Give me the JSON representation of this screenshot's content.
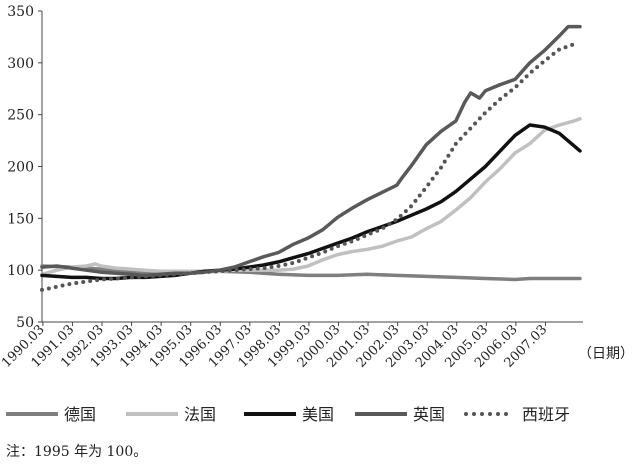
{
  "chart_data": {
    "type": "line",
    "title": "",
    "xlabel": "（日期）",
    "ylabel": "",
    "ylim": [
      50,
      350
    ],
    "yticks": [
      50,
      100,
      150,
      200,
      250,
      300,
      350
    ],
    "grid": false,
    "legend_position": "bottom",
    "note": "注：1995 年为 100。",
    "x_ticks": [
      "1990.03",
      "1991.03",
      "1992.03",
      "1993.03",
      "1994.03",
      "1995.03",
      "1996.03",
      "1997.03",
      "1998.03",
      "1999.03",
      "2000.03",
      "2001.03",
      "2002.03",
      "2003.03",
      "2004.03",
      "2005.03",
      "2006.03",
      "2007.03"
    ],
    "x_range": [
      1990.0,
      2008.3
    ],
    "series": [
      {
        "name": "德国",
        "color": "#7f7f7f",
        "style": "solid",
        "points": [
          [
            1990.0,
            104
          ],
          [
            1991.0,
            103
          ],
          [
            1992.0,
            101
          ],
          [
            1993.0,
            99
          ],
          [
            1994.0,
            98
          ],
          [
            1995.0,
            98
          ],
          [
            1996.0,
            99
          ],
          [
            1997.0,
            98
          ],
          [
            1998.0,
            96
          ],
          [
            1999.0,
            95
          ],
          [
            2000.0,
            95
          ],
          [
            2001.0,
            96
          ],
          [
            2002.0,
            95
          ],
          [
            2003.0,
            94
          ],
          [
            2004.0,
            93
          ],
          [
            2005.0,
            92
          ],
          [
            2006.0,
            91
          ],
          [
            2006.5,
            92
          ],
          [
            2007.0,
            92
          ],
          [
            2007.5,
            92
          ],
          [
            2008.2,
            92
          ]
        ]
      },
      {
        "name": "法国",
        "color": "#c0c0c0",
        "style": "solid",
        "points": [
          [
            1990.0,
            96
          ],
          [
            1990.5,
            100
          ],
          [
            1991.0,
            103
          ],
          [
            1991.5,
            104
          ],
          [
            1991.8,
            106
          ],
          [
            1992.0,
            104
          ],
          [
            1992.5,
            102
          ],
          [
            1993.0,
            101
          ],
          [
            1993.5,
            100
          ],
          [
            1994.0,
            99
          ],
          [
            1994.5,
            99
          ],
          [
            1995.0,
            99
          ],
          [
            1995.5,
            99
          ],
          [
            1996.0,
            99
          ],
          [
            1996.5,
            100
          ],
          [
            1997.0,
            100
          ],
          [
            1997.5,
            100
          ],
          [
            1998.0,
            100
          ],
          [
            1998.5,
            101
          ],
          [
            1999.0,
            104
          ],
          [
            1999.5,
            110
          ],
          [
            2000.0,
            115
          ],
          [
            2000.5,
            118
          ],
          [
            2001.0,
            120
          ],
          [
            2001.5,
            123
          ],
          [
            2002.0,
            128
          ],
          [
            2002.5,
            132
          ],
          [
            2003.0,
            140
          ],
          [
            2003.5,
            147
          ],
          [
            2004.0,
            158
          ],
          [
            2004.5,
            170
          ],
          [
            2005.0,
            185
          ],
          [
            2005.5,
            198
          ],
          [
            2006.0,
            213
          ],
          [
            2006.5,
            222
          ],
          [
            2007.0,
            235
          ],
          [
            2007.5,
            240
          ],
          [
            2008.0,
            244
          ],
          [
            2008.2,
            246
          ]
        ]
      },
      {
        "name": "美国",
        "color": "#111111",
        "style": "solid",
        "points": [
          [
            1990.0,
            95
          ],
          [
            1990.5,
            94
          ],
          [
            1991.0,
            93
          ],
          [
            1991.5,
            93
          ],
          [
            1992.0,
            92
          ],
          [
            1992.5,
            92
          ],
          [
            1993.0,
            93
          ],
          [
            1993.5,
            93
          ],
          [
            1994.0,
            94
          ],
          [
            1994.5,
            95
          ],
          [
            1995.0,
            97
          ],
          [
            1995.5,
            99
          ],
          [
            1996.0,
            100
          ],
          [
            1996.5,
            101
          ],
          [
            1997.0,
            103
          ],
          [
            1997.5,
            105
          ],
          [
            1998.0,
            108
          ],
          [
            1998.5,
            112
          ],
          [
            1999.0,
            116
          ],
          [
            1999.5,
            121
          ],
          [
            2000.0,
            126
          ],
          [
            2000.5,
            131
          ],
          [
            2001.0,
            137
          ],
          [
            2001.5,
            142
          ],
          [
            2002.0,
            147
          ],
          [
            2002.5,
            153
          ],
          [
            2003.0,
            159
          ],
          [
            2003.5,
            166
          ],
          [
            2004.0,
            176
          ],
          [
            2004.5,
            188
          ],
          [
            2005.0,
            200
          ],
          [
            2005.5,
            215
          ],
          [
            2006.0,
            230
          ],
          [
            2006.5,
            240
          ],
          [
            2007.0,
            238
          ],
          [
            2007.5,
            232
          ],
          [
            2008.2,
            215
          ]
        ]
      },
      {
        "name": "英国",
        "color": "#595959",
        "style": "solid",
        "points": [
          [
            1990.0,
            103
          ],
          [
            1990.5,
            104
          ],
          [
            1991.0,
            102
          ],
          [
            1991.5,
            100
          ],
          [
            1992.0,
            98
          ],
          [
            1992.5,
            97
          ],
          [
            1993.0,
            96
          ],
          [
            1993.5,
            95
          ],
          [
            1994.0,
            96
          ],
          [
            1994.5,
            97
          ],
          [
            1995.0,
            97
          ],
          [
            1995.5,
            98
          ],
          [
            1996.0,
            100
          ],
          [
            1996.5,
            103
          ],
          [
            1997.0,
            108
          ],
          [
            1997.5,
            113
          ],
          [
            1998.0,
            117
          ],
          [
            1998.5,
            125
          ],
          [
            1999.0,
            131
          ],
          [
            1999.5,
            139
          ],
          [
            2000.0,
            151
          ],
          [
            2000.5,
            160
          ],
          [
            2001.0,
            168
          ],
          [
            2001.5,
            175
          ],
          [
            2002.0,
            182
          ],
          [
            2002.2,
            190
          ],
          [
            2002.5,
            201
          ],
          [
            2003.0,
            221
          ],
          [
            2003.5,
            234
          ],
          [
            2004.0,
            244
          ],
          [
            2004.3,
            262
          ],
          [
            2004.5,
            271
          ],
          [
            2004.8,
            266
          ],
          [
            2005.0,
            273
          ],
          [
            2005.5,
            279
          ],
          [
            2006.0,
            284
          ],
          [
            2006.5,
            300
          ],
          [
            2007.0,
            312
          ],
          [
            2007.5,
            326
          ],
          [
            2007.8,
            335
          ],
          [
            2008.2,
            335
          ]
        ]
      },
      {
        "name": "西班牙",
        "color": "#555555",
        "style": "dotted",
        "points": [
          [
            1990.0,
            81
          ],
          [
            1990.5,
            84
          ],
          [
            1991.0,
            87
          ],
          [
            1991.5,
            89
          ],
          [
            1992.0,
            91
          ],
          [
            1992.5,
            92
          ],
          [
            1993.0,
            93
          ],
          [
            1993.5,
            94
          ],
          [
            1994.0,
            95
          ],
          [
            1994.5,
            96
          ],
          [
            1995.0,
            97
          ],
          [
            1995.5,
            98
          ],
          [
            1996.0,
            99
          ],
          [
            1996.5,
            100
          ],
          [
            1997.0,
            101
          ],
          [
            1997.5,
            102
          ],
          [
            1998.0,
            104
          ],
          [
            1998.5,
            107
          ],
          [
            1999.0,
            112
          ],
          [
            1999.5,
            117
          ],
          [
            2000.0,
            123
          ],
          [
            2000.5,
            128
          ],
          [
            2001.0,
            134
          ],
          [
            2001.5,
            140
          ],
          [
            2002.0,
            149
          ],
          [
            2002.5,
            162
          ],
          [
            2003.0,
            180
          ],
          [
            2003.5,
            199
          ],
          [
            2004.0,
            222
          ],
          [
            2004.5,
            237
          ],
          [
            2005.0,
            252
          ],
          [
            2005.5,
            265
          ],
          [
            2006.0,
            276
          ],
          [
            2006.5,
            290
          ],
          [
            2007.0,
            302
          ],
          [
            2007.5,
            313
          ],
          [
            2008.0,
            318
          ]
        ]
      }
    ]
  }
}
